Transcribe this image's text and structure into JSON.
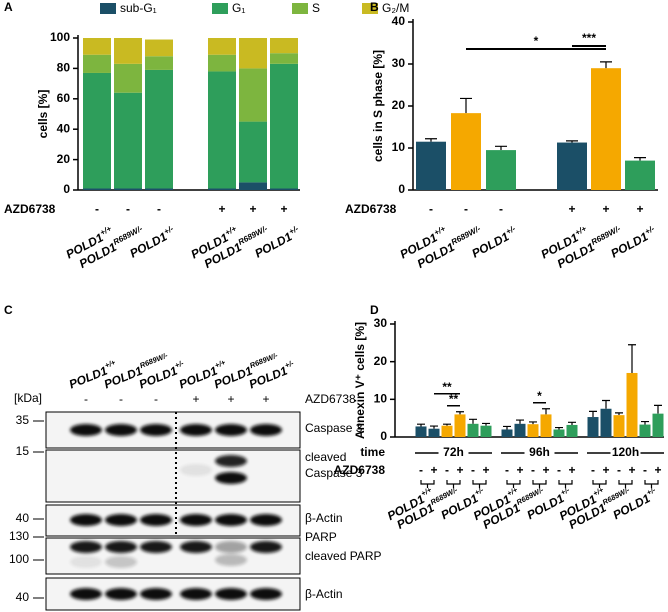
{
  "chart_data": [
    {
      "panel": "A",
      "type": "stacked_bar",
      "ylabel": "cells [%]",
      "ylim": [
        0,
        100
      ],
      "yticks": [
        0,
        20,
        40,
        60,
        80,
        100
      ],
      "categories": [
        "POLD1+/+",
        "POLD1R689W/-",
        "POLD1+/-",
        "POLD1+/+",
        "POLD1R689W/-",
        "POLD1+/-"
      ],
      "treatment_label": "AZD6738",
      "treatment": [
        "-",
        "-",
        "-",
        "+",
        "+",
        "+"
      ],
      "series": [
        {
          "name": "sub-G₁",
          "color": "#1b4f67",
          "values": [
            1,
            1,
            1,
            1,
            5,
            1
          ]
        },
        {
          "name": "G₁",
          "color": "#2e9e5b",
          "values": [
            76,
            63,
            78,
            77,
            40,
            82
          ]
        },
        {
          "name": "S",
          "color": "#7db53f",
          "values": [
            12,
            19,
            9,
            11,
            35,
            7
          ]
        },
        {
          "name": "G₂/M",
          "color": "#c9ba22",
          "values": [
            11,
            17,
            11,
            11,
            20,
            10
          ]
        }
      ]
    },
    {
      "panel": "B",
      "type": "bar",
      "ylabel": "cells in S phase [%]",
      "ylim": [
        0,
        40
      ],
      "yticks": [
        0,
        10,
        20,
        30,
        40
      ],
      "categories": [
        "POLD1+/+",
        "POLD1R689W/-",
        "POLD1+/-",
        "POLD1+/+",
        "POLD1R689W/-",
        "POLD1+/-"
      ],
      "treatment_label": "AZD6738",
      "treatment": [
        "-",
        "-",
        "-",
        "+",
        "+",
        "+"
      ],
      "colors": [
        "#1b4f67",
        "#f5a800",
        "#2e9e5b",
        "#1b4f67",
        "#f5a800",
        "#2e9e5b"
      ],
      "values": [
        11.5,
        18.3,
        9.5,
        11.3,
        29,
        7.0
      ],
      "errors": [
        0.7,
        3.5,
        0.9,
        0.4,
        1.5,
        0.7
      ],
      "annotations": [
        {
          "text": "*",
          "from": 1,
          "to": 4
        },
        {
          "text": "***",
          "from": 3,
          "to": 4
        }
      ]
    },
    {
      "panel": "D",
      "type": "grouped_bar",
      "ylabel": "Annexin V⁺ cells [%]",
      "ylim": [
        0,
        30
      ],
      "yticks": [
        0,
        10,
        20,
        30
      ],
      "group_label": "time",
      "groups": [
        "72h",
        "96h",
        "120h"
      ],
      "categories": [
        "POLD1+/+",
        "POLD1R689W/-",
        "POLD1+/-"
      ],
      "colors": [
        "#1b4f67",
        "#f5a800",
        "#2e9e5b"
      ],
      "treatment_label": "AZD6738",
      "treatment": [
        "-",
        "+",
        "-",
        "+",
        "-",
        "+"
      ],
      "values": [
        [
          2.8,
          2.2,
          3.0,
          6.0,
          3.5,
          3.0
        ],
        [
          2.0,
          3.5,
          3.4,
          6.0,
          2.0,
          3.2
        ],
        [
          5.3,
          7.5,
          5.8,
          17.0,
          3.3,
          6.2
        ]
      ],
      "errors": [
        [
          0.6,
          0.7,
          0.4,
          0.7,
          1.2,
          0.6
        ],
        [
          0.8,
          1.0,
          0.6,
          1.5,
          0.5,
          0.7
        ],
        [
          1.5,
          2.2,
          0.6,
          7.5,
          0.8,
          2.2
        ]
      ],
      "annotations": [
        {
          "group": 0,
          "text": "**",
          "from": 2,
          "to": 3
        },
        {
          "group": 0,
          "text": "**",
          "from": 1,
          "to": 3
        },
        {
          "group": 1,
          "text": "*",
          "from": 2,
          "to": 3
        }
      ]
    }
  ],
  "blot": {
    "panel": "C",
    "lanes": [
      "POLD1+/+",
      "POLD1R689W/-",
      "POLD1+/-",
      "POLD1+/+",
      "POLD1R689W/-",
      "POLD1+/-"
    ],
    "kda_label": "[kDa]",
    "treatment_label": "AZD6738",
    "treatment": [
      "-",
      "-",
      "-",
      "+",
      "+",
      "+"
    ],
    "strips": [
      {
        "markers": [
          "35"
        ],
        "labels": [
          "Caspase 3"
        ]
      },
      {
        "markers": [
          "15"
        ],
        "labels": [
          "cleaved",
          "Caspase 3"
        ]
      },
      {
        "markers": [
          "40"
        ],
        "labels": [
          "β-Actin"
        ]
      },
      {
        "markers": [
          "130",
          "100"
        ],
        "labels": [
          "PARP",
          "cleaved PARP"
        ]
      },
      {
        "markers": [
          "40"
        ],
        "labels": [
          "β-Actin"
        ]
      }
    ]
  }
}
